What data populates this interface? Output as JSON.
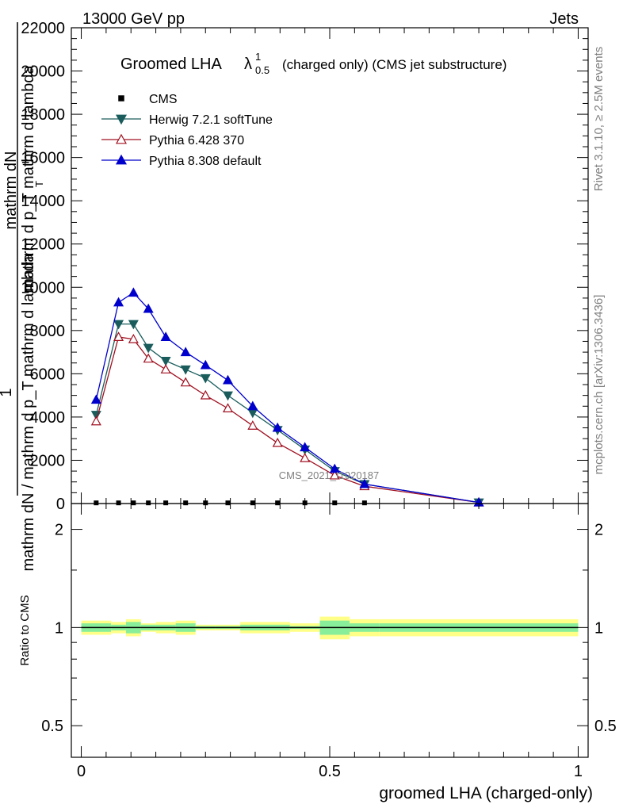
{
  "header": {
    "left": "13000 GeV pp",
    "right": "Jets"
  },
  "title": {
    "main": "Groomed LHA",
    "lambda": "λ",
    "sup": "1",
    "sub": "0.5",
    "rest": "(charged only) (CMS jet substructure)"
  },
  "ylabel": {
    "top": "mathrm dN",
    "top2": "mathrm d p_T mathrm d lambda",
    "one": "1",
    "bottom": "mathrm dN / mathrm d p_T mathrm d lambda",
    "pt_sub": "T"
  },
  "side_labels": {
    "rivet": "Rivet 3.1.10, ≥ 2.5M events",
    "mcplots": "mcplots.cern.ch [arXiv:1306.3436]"
  },
  "watermark": "CMS_2021_I1920187",
  "ratio_ylabel": "Ratio to CMS",
  "xlabel": "groomed LHA (charged-only)",
  "legend": [
    {
      "label": "CMS",
      "color": "#000000",
      "marker": "square"
    },
    {
      "label": "Herwig 7.2.1 softTune",
      "color": "#1a5c5c",
      "marker": "triangle-down"
    },
    {
      "label": "Pythia 6.428 370",
      "color": "#a01020",
      "marker": "triangle-up-open"
    },
    {
      "label": "Pythia 8.308 default",
      "color": "#0000cc",
      "marker": "triangle-up"
    }
  ],
  "chart_data": {
    "type": "line",
    "x": [
      0.03,
      0.075,
      0.105,
      0.135,
      0.17,
      0.21,
      0.25,
      0.295,
      0.345,
      0.395,
      0.45,
      0.51,
      0.57,
      0.8
    ],
    "series": [
      {
        "name": "CMS",
        "values": [
          30,
          30,
          30,
          30,
          30,
          30,
          30,
          30,
          30,
          30,
          30,
          30,
          30,
          30
        ]
      },
      {
        "name": "Herwig 7.2.1 softTune",
        "values": [
          4100,
          8300,
          8300,
          7200,
          6600,
          6200,
          5800,
          5000,
          4200,
          3400,
          2500,
          1500,
          900,
          50
        ]
      },
      {
        "name": "Pythia 6.428 370",
        "values": [
          3800,
          7700,
          7600,
          6700,
          6200,
          5600,
          5000,
          4400,
          3600,
          2800,
          2100,
          1300,
          800,
          50
        ]
      },
      {
        "name": "Pythia 8.308 default",
        "values": [
          4800,
          9300,
          9750,
          9000,
          7700,
          7000,
          6400,
          5700,
          4500,
          3500,
          2600,
          1600,
          900,
          50
        ]
      }
    ],
    "xlim": [
      -0.02,
      1.02
    ],
    "ylim": [
      0,
      22000
    ],
    "yticks": [
      0,
      2000,
      4000,
      6000,
      8000,
      10000,
      12000,
      14000,
      16000,
      18000,
      20000,
      22000
    ],
    "xticks": [
      "0",
      "0.5",
      "1"
    ],
    "ratio": {
      "ylim_log": [
        0.4,
        2.4
      ],
      "yticks": [
        "0.5",
        "1",
        "2"
      ],
      "bands": [
        {
          "x0": 0.0,
          "x1": 0.06,
          "inner": 0.03,
          "outer": 0.05
        },
        {
          "x0": 0.06,
          "x1": 0.09,
          "inner": 0.02,
          "outer": 0.04
        },
        {
          "x0": 0.09,
          "x1": 0.12,
          "inner": 0.04,
          "outer": 0.06
        },
        {
          "x0": 0.12,
          "x1": 0.15,
          "inner": 0.02,
          "outer": 0.03
        },
        {
          "x0": 0.15,
          "x1": 0.19,
          "inner": 0.02,
          "outer": 0.04
        },
        {
          "x0": 0.19,
          "x1": 0.23,
          "inner": 0.03,
          "outer": 0.05
        },
        {
          "x0": 0.23,
          "x1": 0.27,
          "inner": 0.01,
          "outer": 0.02
        },
        {
          "x0": 0.27,
          "x1": 0.32,
          "inner": 0.01,
          "outer": 0.02
        },
        {
          "x0": 0.32,
          "x1": 0.37,
          "inner": 0.02,
          "outer": 0.04
        },
        {
          "x0": 0.37,
          "x1": 0.42,
          "inner": 0.02,
          "outer": 0.04
        },
        {
          "x0": 0.42,
          "x1": 0.48,
          "inner": 0.01,
          "outer": 0.03
        },
        {
          "x0": 0.48,
          "x1": 0.54,
          "inner": 0.05,
          "outer": 0.08
        },
        {
          "x0": 0.54,
          "x1": 0.6,
          "inner": 0.03,
          "outer": 0.06
        },
        {
          "x0": 0.6,
          "x1": 1.0,
          "inner": 0.03,
          "outer": 0.06
        }
      ]
    }
  }
}
